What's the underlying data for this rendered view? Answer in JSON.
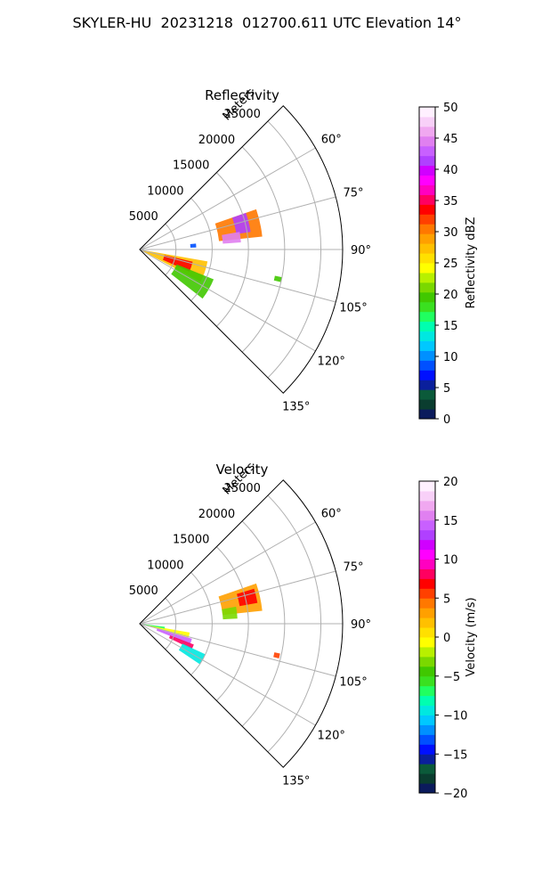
{
  "figure": {
    "title": "SKYLER-HU  20231218  012700.611 UTC Elevation 14°"
  },
  "chart_data": [
    {
      "type": "heatmap",
      "subtype": "polar-sector-radar",
      "title": "Reflectivity",
      "radial_label": "Meters",
      "theta_range_deg": [
        45,
        135
      ],
      "r_range_m": [
        0,
        28000
      ],
      "radial_ticks": [
        "5000",
        "10000",
        "15000",
        "20000",
        "25000"
      ],
      "radial_tick_values": [
        5000,
        10000,
        15000,
        20000,
        25000
      ],
      "angle_ticks": [
        "60°",
        "75°",
        "90°",
        "105°",
        "120°",
        "135°"
      ],
      "angle_tick_values": [
        60,
        75,
        90,
        105,
        120,
        135
      ],
      "grid": true,
      "colorbar": {
        "label": "Reflectivity dBZ",
        "range": [
          0,
          50
        ],
        "ticks": [
          "0",
          "5",
          "10",
          "15",
          "20",
          "25",
          "30",
          "35",
          "40",
          "45",
          "50"
        ],
        "tick_values": [
          0,
          5,
          10,
          15,
          20,
          25,
          30,
          35,
          40,
          45,
          50
        ],
        "colors": [
          "#0b1b5c",
          "#0a3d2f",
          "#0b5a3a",
          "#0a1f9c",
          "#0010ff",
          "#0050ff",
          "#0090ff",
          "#00c8ff",
          "#00e8e0",
          "#00ffb0",
          "#20ff60",
          "#3ae020",
          "#40c800",
          "#7ad800",
          "#b8f000",
          "#ffff00",
          "#ffe000",
          "#ffc000",
          "#ffa000",
          "#ff7800",
          "#ff4000",
          "#ff0000",
          "#ff0060",
          "#ff00c0",
          "#ff00ff",
          "#d000ff",
          "#b040ff",
          "#c860ff",
          "#e080f0",
          "#f0a8f0",
          "#f8d0f8",
          "#fff0ff"
        ]
      },
      "regions": [
        {
          "theta_deg": [
            71,
            84
          ],
          "r_m": [
            11000,
            17000
          ],
          "level": 19
        },
        {
          "theta_deg": [
            71,
            81
          ],
          "r_m": [
            13500,
            15500
          ],
          "level": 26
        },
        {
          "theta_deg": [
            80,
            86
          ],
          "r_m": [
            11500,
            14000
          ],
          "level": 28
        },
        {
          "theta_deg": [
            100,
            118
          ],
          "r_m": [
            400,
            9500
          ],
          "level": 17
        },
        {
          "theta_deg": [
            103,
            114
          ],
          "r_m": [
            3500,
            7500
          ],
          "level": 21
        },
        {
          "theta_deg": [
            112,
            128
          ],
          "r_m": [
            5500,
            11000
          ],
          "level": 12
        },
        {
          "theta_deg": [
            84,
            88
          ],
          "r_m": [
            7000,
            7800
          ],
          "level": 5
        },
        {
          "theta_deg": [
            101,
            103
          ],
          "r_m": [
            19000,
            20000
          ],
          "level": 12
        }
      ]
    },
    {
      "type": "heatmap",
      "subtype": "polar-sector-radar",
      "title": "Velocity",
      "radial_label": "Meters",
      "theta_range_deg": [
        45,
        135
      ],
      "r_range_m": [
        0,
        28000
      ],
      "radial_ticks": [
        "5000",
        "10000",
        "15000",
        "20000",
        "25000"
      ],
      "radial_tick_values": [
        5000,
        10000,
        15000,
        20000,
        25000
      ],
      "angle_ticks": [
        "60°",
        "75°",
        "90°",
        "105°",
        "120°",
        "135°"
      ],
      "angle_tick_values": [
        60,
        75,
        90,
        105,
        120,
        135
      ],
      "grid": true,
      "colorbar": {
        "label": "Velocity (m/s)",
        "range": [
          -20,
          20
        ],
        "ticks": [
          "−20",
          "−15",
          "−10",
          "−5",
          "0",
          "5",
          "10",
          "15",
          "20"
        ],
        "tick_values": [
          -20,
          -15,
          -10,
          -5,
          0,
          5,
          10,
          15,
          20
        ],
        "colors": [
          "#0b1b5c",
          "#0a3d2f",
          "#0b5a3a",
          "#0a1f9c",
          "#0010ff",
          "#0050ff",
          "#0090ff",
          "#00c8ff",
          "#00e8e0",
          "#00ffb0",
          "#20ff60",
          "#3ae020",
          "#40c800",
          "#7ad800",
          "#b8f000",
          "#ffff00",
          "#ffe000",
          "#ffc000",
          "#ffa000",
          "#ff7800",
          "#ff4000",
          "#ff0000",
          "#ff0060",
          "#ff00c0",
          "#ff00ff",
          "#d000ff",
          "#b040ff",
          "#c860ff",
          "#e080f0",
          "#f0a8f0",
          "#f8d0f8",
          "#fff0ff"
        ]
      },
      "regions": [
        {
          "theta_deg": [
            71,
            84
          ],
          "r_m": [
            11500,
            17000
          ],
          "level": 18
        },
        {
          "theta_deg": [
            73,
            80
          ],
          "r_m": [
            14000,
            16500
          ],
          "level": 21
        },
        {
          "theta_deg": [
            80,
            87
          ],
          "r_m": [
            11500,
            13500
          ],
          "level": 13
        },
        {
          "theta_deg": [
            100,
            106
          ],
          "r_m": [
            400,
            7000
          ],
          "level": 15
        },
        {
          "theta_deg": [
            106,
            112
          ],
          "r_m": [
            2500,
            7500
          ],
          "level": 27
        },
        {
          "theta_deg": [
            111,
            116
          ],
          "r_m": [
            4500,
            8000
          ],
          "level": 22
        },
        {
          "theta_deg": [
            115,
            124
          ],
          "r_m": [
            6500,
            10000
          ],
          "level": 8
        },
        {
          "theta_deg": [
            97,
            101
          ],
          "r_m": [
            500,
            3500
          ],
          "level": 10
        },
        {
          "theta_deg": [
            102,
            104
          ],
          "r_m": [
            19000,
            19800
          ],
          "level": 20
        }
      ]
    }
  ]
}
